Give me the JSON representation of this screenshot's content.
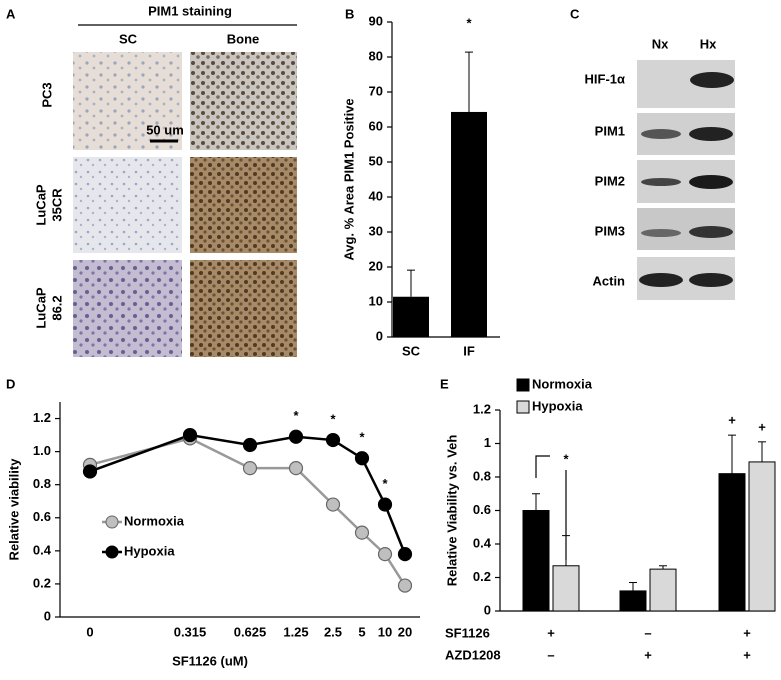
{
  "panel_a": {
    "panel": "A",
    "title": "PIM1 staining",
    "columns": [
      "SC",
      "Bone"
    ],
    "rows": [
      [
        "PC3"
      ],
      [
        "LuCaP",
        "35CR"
      ],
      [
        "LuCaP",
        "86.2"
      ]
    ],
    "scale_bar": "50 um"
  },
  "panel_c": {
    "panel": "C",
    "columns": [
      "Nx",
      "Hx"
    ],
    "rows": [
      "HIF-1α",
      "PIM1",
      "PIM2",
      "PIM3",
      "Actin"
    ]
  },
  "chart_data": [
    {
      "type": "bar",
      "panel": "B",
      "y_label": "Avg. % Area PIM1 Positive",
      "categories": [
        "SC",
        "IF"
      ],
      "values": [
        11.5,
        64.3
      ],
      "errors": [
        7.6,
        17.1
      ],
      "color": "#000000",
      "ylim": [
        0,
        90
      ],
      "yticks": [
        0,
        10,
        20,
        30,
        40,
        50,
        60,
        70,
        80,
        90
      ],
      "annotations": [
        "*"
      ]
    },
    {
      "type": "line",
      "panel": "D",
      "x_label": "SF1126 (uM)",
      "y_label": "Relative viability",
      "categories": [
        "0",
        "0.315",
        "0.625",
        "1.25",
        "2.5",
        "5",
        "10",
        "20"
      ],
      "series": [
        {
          "name": "Normoxia",
          "color": "#bfbfbf",
          "values": [
            0.92,
            1.08,
            0.9,
            0.9,
            0.68,
            0.51,
            0.38,
            0.19
          ]
        },
        {
          "name": "Hypoxia",
          "color": "#000000",
          "values": [
            0.88,
            1.1,
            1.04,
            1.09,
            1.07,
            0.96,
            0.68,
            0.38
          ]
        }
      ],
      "ylim": [
        0,
        1.3
      ],
      "yticks": [
        0,
        0.2,
        0.4,
        0.6,
        0.8,
        {
          "value": 1,
          "label": "1.0"
        },
        1.2
      ],
      "annotations": [
        "*",
        "*",
        "*",
        "*"
      ]
    },
    {
      "type": "bar",
      "panel": "E",
      "y_label": "Relative Viability vs. Veh",
      "categories": [
        null,
        null,
        null
      ],
      "series": [
        {
          "name": "Normoxia",
          "color": "#000000",
          "values": [
            0.6,
            0.12,
            0.82
          ],
          "errors": [
            0.1,
            0.05,
            0.23
          ]
        },
        {
          "name": "Hypoxia",
          "color": "#d9d9d9",
          "values": [
            0.27,
            0.25,
            0.89
          ],
          "errors": [
            0.18,
            0.02,
            0.12
          ]
        }
      ],
      "ylim": [
        0,
        1.2
      ],
      "yticks": [
        0,
        0.2,
        0.4,
        0.6,
        0.8,
        1,
        1.2
      ],
      "annotations": [
        "*",
        "+",
        "+"
      ],
      "treatments": [
        {
          "label": "SF1126",
          "values": [
            "+",
            "–",
            "+"
          ]
        },
        {
          "label": "AZD1208",
          "values": [
            "–",
            "+",
            "+"
          ]
        }
      ]
    }
  ]
}
